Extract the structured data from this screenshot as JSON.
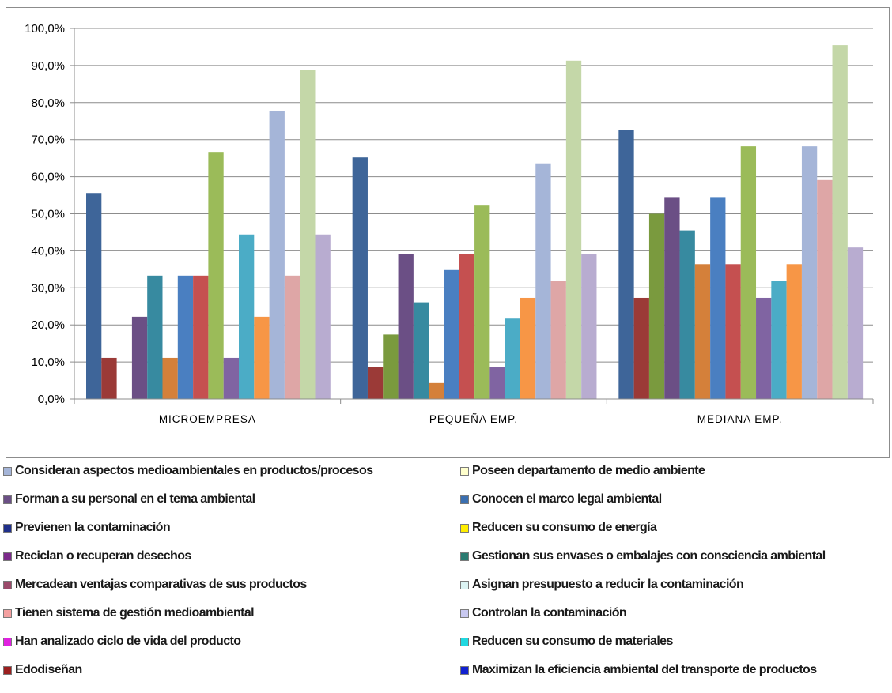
{
  "chart_data": {
    "type": "bar",
    "categories": [
      "MICROEMPRESA",
      "PEQUEÑA EMP.",
      "MEDIANA EMP."
    ],
    "ylim": [
      0,
      100
    ],
    "yticks": [
      "0,0%",
      "10,0%",
      "20,0%",
      "30,0%",
      "40,0%",
      "50,0%",
      "60,0%",
      "70,0%",
      "80,0%",
      "90,0%",
      "100,0%"
    ],
    "grid": true,
    "legend_position": "bottom",
    "series": [
      {
        "values": [
          55.6,
          65.2,
          72.7
        ],
        "color": "#3e6599"
      },
      {
        "values": [
          11.1,
          8.7,
          27.3
        ],
        "color": "#9b3a37"
      },
      {
        "values": [
          0,
          17.4,
          50.0
        ],
        "color": "#7a9a3e"
      },
      {
        "values": [
          22.2,
          39.1,
          54.5
        ],
        "color": "#6b4f85"
      },
      {
        "values": [
          33.3,
          26.1,
          45.5
        ],
        "color": "#378aa0"
      },
      {
        "values": [
          11.1,
          4.3,
          36.4
        ],
        "color": "#d4803a"
      },
      {
        "values": [
          33.3,
          34.8,
          54.5
        ],
        "color": "#4a7fc1"
      },
      {
        "values": [
          33.3,
          39.1,
          36.4
        ],
        "color": "#c55050"
      },
      {
        "values": [
          66.7,
          52.2,
          68.2
        ],
        "color": "#9bbb59"
      },
      {
        "values": [
          11.1,
          8.7,
          27.3
        ],
        "color": "#8064a2"
      },
      {
        "values": [
          44.4,
          21.7,
          31.8
        ],
        "color": "#4bacc6"
      },
      {
        "values": [
          22.2,
          27.3,
          36.4
        ],
        "color": "#f79646"
      },
      {
        "values": [
          77.8,
          63.6,
          68.2
        ],
        "color": "#a5b5d8"
      },
      {
        "values": [
          33.3,
          31.8,
          59.1
        ],
        "color": "#dea6a6"
      },
      {
        "values": [
          88.9,
          91.3,
          95.5
        ],
        "color": "#c4d7a8"
      },
      {
        "values": [
          44.4,
          39.1,
          40.9
        ],
        "color": "#b8acd0"
      }
    ]
  },
  "legend": {
    "left": [
      {
        "label": "Consideran aspectos medioambientales en productos/procesos",
        "color": "#a5b5d8"
      },
      {
        "label": "Forman a su personal en el tema ambiental",
        "color": "#6b4f85"
      },
      {
        "label": "Previenen la contaminación",
        "color": "#1f2f8a"
      },
      {
        "label": "Reciclan o recuperan desechos",
        "color": "#7b2a8a"
      },
      {
        "label": "Mercadean ventajas comparativas de sus productos",
        "color": "#9b4a6a"
      },
      {
        "label": "Tienen sistema de gestión medioambiental",
        "color": "#f4a0a0"
      },
      {
        "label": "Han analizado ciclo de vida del producto",
        "color": "#e020e0"
      },
      {
        "label": "Edodiseñan",
        "color": "#9b1f1f"
      }
    ],
    "right": [
      {
        "label": "Poseen departamento de medio ambiente",
        "color": "#ffffcc"
      },
      {
        "label": "Conocen el marco legal ambiental",
        "color": "#3a6fb0"
      },
      {
        "label": "Reducen su consumo de energía",
        "color": "#ffee00"
      },
      {
        "label": "Gestionan sus envases o embalajes con consciencia ambiental",
        "color": "#2a7a70"
      },
      {
        "label": "Asignan presupuesto a reducir la contaminación",
        "color": "#dcf4f4"
      },
      {
        "label": "Controlan la contaminación",
        "color": "#c8c8f0"
      },
      {
        "label": "Reducen su consumo de materiales",
        "color": "#20d8e0"
      },
      {
        "label": "Maximizan la eficiencia ambiental del transporte de productos",
        "color": "#1020d0"
      }
    ]
  }
}
